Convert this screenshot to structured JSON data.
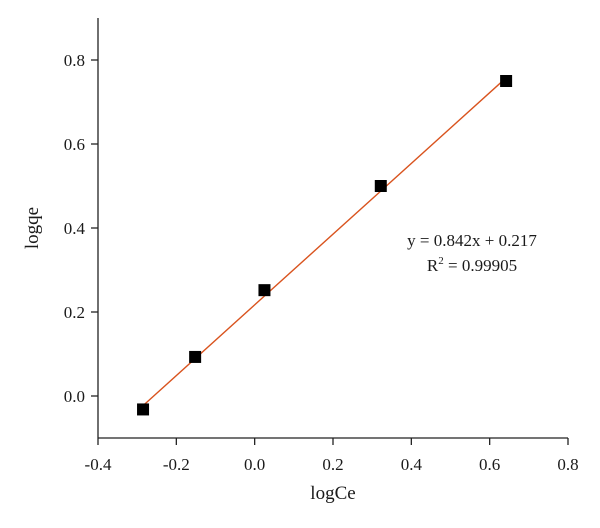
{
  "chart_data": {
    "type": "scatter",
    "xlabel": "logCe",
    "ylabel": "logqe",
    "xlim": [
      -0.4,
      0.8
    ],
    "ylim": [
      -0.1,
      0.9
    ],
    "xticks": [
      -0.4,
      -0.2,
      0.0,
      0.2,
      0.4,
      0.6,
      0.8
    ],
    "yticks": [
      0.0,
      0.2,
      0.4,
      0.6,
      0.8
    ],
    "xtick_labels": [
      "-0.4",
      "-0.2",
      "0.0",
      "0.2",
      "0.4",
      "0.6",
      "0.8"
    ],
    "ytick_labels": [
      "0.0",
      "0.2",
      "0.4",
      "0.6",
      "0.8"
    ],
    "grid": false,
    "series": [
      {
        "x": [
          -0.285,
          -0.152,
          0.025,
          0.322,
          0.642
        ],
        "y": [
          -0.032,
          0.093,
          0.252,
          0.5,
          0.75
        ],
        "marker": "square",
        "color": "#000000"
      }
    ],
    "fit_line": {
      "slope": 0.842,
      "intercept": 0.217,
      "x_range": [
        -0.285,
        0.642
      ],
      "color": "#d9531e"
    },
    "annotations": {
      "equation": "y = 0.842x + 0.217",
      "r2_prefix": "R",
      "r2_sup": "2",
      "r2_value": " = 0.99905"
    }
  }
}
